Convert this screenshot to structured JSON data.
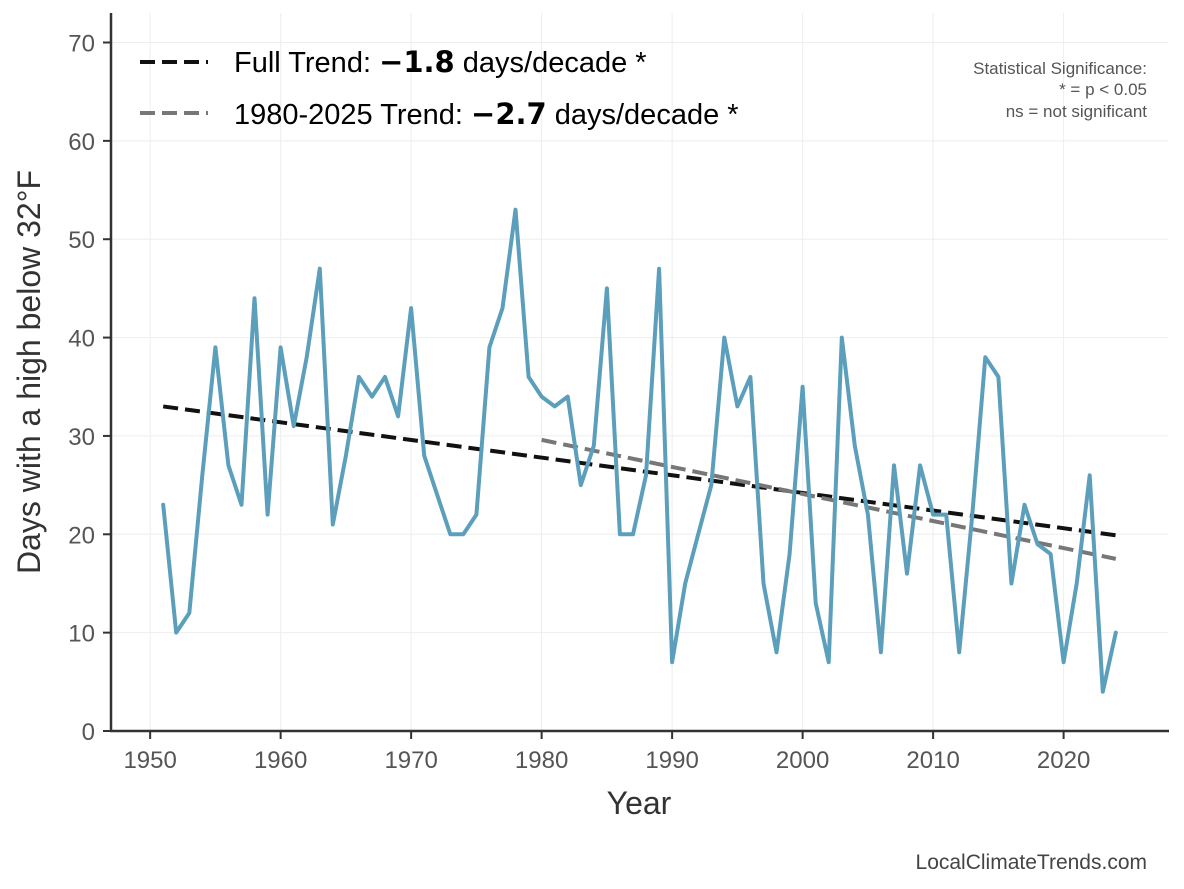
{
  "chart_data": {
    "type": "line",
    "title": "",
    "xlabel": "Year",
    "ylabel": "Days with a high below 32°F",
    "xlim": [
      1947,
      2028
    ],
    "ylim": [
      0,
      73
    ],
    "x_ticks": [
      "1950",
      "1960",
      "1970",
      "1980",
      "1990",
      "2000",
      "2010",
      "2020"
    ],
    "y_ticks": [
      "0",
      "10",
      "20",
      "30",
      "40",
      "50",
      "60",
      "70"
    ],
    "grid": true,
    "legend_position": "top-left",
    "series": [
      {
        "color": "#5b9fbc",
        "x": [
          1951,
          1952,
          1953,
          1954,
          1955,
          1956,
          1957,
          1958,
          1959,
          1960,
          1961,
          1962,
          1963,
          1964,
          1965,
          1966,
          1967,
          1968,
          1969,
          1970,
          1971,
          1972,
          1973,
          1974,
          1975,
          1976,
          1977,
          1978,
          1979,
          1980,
          1981,
          1982,
          1983,
          1984,
          1985,
          1986,
          1987,
          1988,
          1989,
          1990,
          1991,
          1992,
          1993,
          1994,
          1995,
          1996,
          1997,
          1998,
          1999,
          2000,
          2001,
          2002,
          2003,
          2004,
          2005,
          2006,
          2007,
          2008,
          2009,
          2010,
          2011,
          2012,
          2013,
          2014,
          2015,
          2016,
          2017,
          2018,
          2019,
          2020,
          2021,
          2022,
          2023,
          2024
        ],
        "y": [
          23,
          10,
          12,
          26,
          39,
          27,
          23,
          44,
          22,
          39,
          31,
          38,
          47,
          21,
          28,
          36,
          34,
          36,
          32,
          43,
          28,
          24,
          20,
          20,
          22,
          39,
          43,
          53,
          36,
          34,
          33,
          34,
          25,
          29,
          45,
          20,
          20,
          26,
          47,
          7,
          15,
          20,
          25,
          40,
          33,
          36,
          15,
          8,
          18,
          35,
          13,
          7,
          40,
          29,
          22,
          8,
          27,
          16,
          27,
          22,
          22,
          8,
          22,
          38,
          36,
          15,
          23,
          19,
          18,
          7,
          15,
          26,
          4,
          10
        ]
      }
    ],
    "trends": [
      {
        "color": "#111111",
        "x": [
          1951,
          2024
        ],
        "y": [
          33.0,
          19.9
        ],
        "label_prefix": "Full Trend: ",
        "label_value": "−1.8",
        "label_suffix": " days/decade *"
      },
      {
        "color": "#777777",
        "x": [
          1980,
          2024
        ],
        "y": [
          29.6,
          17.5
        ],
        "label_prefix": "1980-2025 Trend: ",
        "label_value": "−2.7",
        "label_suffix": " days/decade *"
      }
    ],
    "annotations": {
      "significance": [
        "Statistical Significance:",
        "* = p < 0.05",
        "ns = not significant"
      ]
    }
  },
  "source": "LocalClimateTrends.com"
}
